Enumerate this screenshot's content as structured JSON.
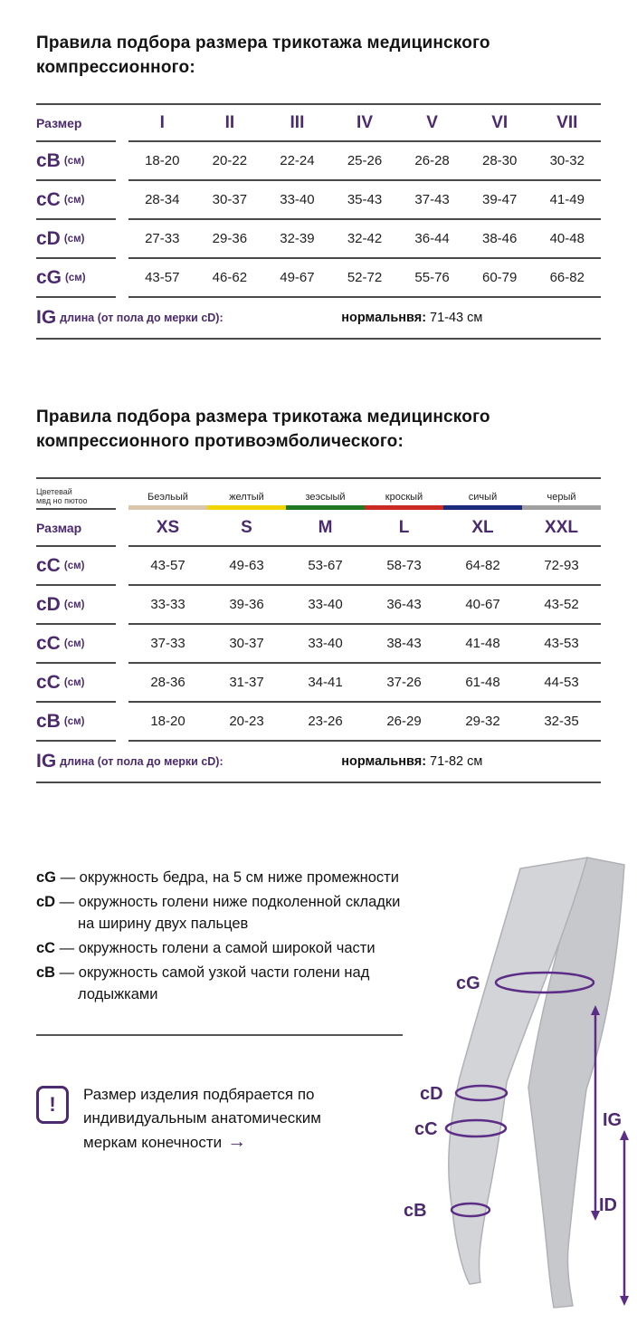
{
  "colors": {
    "accent": "#4b2a6e",
    "accent2": "#5b2d86",
    "line": "#4a4a4a",
    "text": "#161616",
    "leg_fill": "#d3d4d8",
    "leg_fill_back": "#c7c8cc",
    "leg_stroke": "#b0b1b6"
  },
  "icons": {
    "exclamation": "!",
    "arrow_right": "→"
  },
  "table1": {
    "title": "Правила подбора размера трикотажа медицинского компрессионного:",
    "header_label": "Размер",
    "columns": [
      "I",
      "II",
      "III",
      "IV",
      "V",
      "VI",
      "VII"
    ],
    "rows": [
      {
        "label": "cB",
        "unit": "(см)",
        "values": [
          "18-20",
          "20-22",
          "22-24",
          "25-26",
          "26-28",
          "28-30",
          "30-32"
        ]
      },
      {
        "label": "cC",
        "unit": "(см)",
        "values": [
          "28-34",
          "30-37",
          "33-40",
          "35-43",
          "37-43",
          "39-47",
          "41-49"
        ]
      },
      {
        "label": "cD",
        "unit": "(см)",
        "values": [
          "27-33",
          "29-36",
          "32-39",
          "32-42",
          "36-44",
          "38-46",
          "40-48"
        ]
      },
      {
        "label": "cG",
        "unit": "(см)",
        "values": [
          "43-57",
          "46-62",
          "49-67",
          "52-72",
          "55-76",
          "60-79",
          "66-82"
        ]
      }
    ],
    "footer": {
      "label": "IG",
      "text": "длина (от пола до мерки cD):",
      "bold": "нормальнвя:",
      "value": "71-43 см"
    }
  },
  "table2": {
    "title": "Правила подбора размера трикотажа медицинского компрессионного противоэмболического:",
    "color_label_line1": "Цветевай",
    "color_label_line2": "мвд но пютоо",
    "colors": [
      {
        "name": "Беэльый",
        "hex": "#d9c6ad"
      },
      {
        "name": "желтый",
        "hex": "#f2d500"
      },
      {
        "name": "зеэсыый",
        "hex": "#217a21"
      },
      {
        "name": "кроскый",
        "hex": "#c92a21"
      },
      {
        "name": "сичый",
        "hex": "#1b2a7a"
      },
      {
        "name": "черый",
        "hex": "#a0a0a0"
      }
    ],
    "header_label": "Размар",
    "columns": [
      "XS",
      "S",
      "M",
      "L",
      "XL",
      "XXL"
    ],
    "rows": [
      {
        "label": "cC",
        "unit": "(см)",
        "values": [
          "43-57",
          "49-63",
          "53-67",
          "58-73",
          "64-82",
          "72-93"
        ]
      },
      {
        "label": "cD",
        "unit": "(см)",
        "values": [
          "33-33",
          "39-36",
          "33-40",
          "36-43",
          "40-67",
          "43-52"
        ]
      },
      {
        "label": "cC",
        "unit": "(см)",
        "values": [
          "37-33",
          "30-37",
          "33-40",
          "38-43",
          "41-48",
          "43-53"
        ]
      },
      {
        "label": "cC",
        "unit": "(см)",
        "values": [
          "28-36",
          "31-37",
          "34-41",
          "37-26",
          "61-48",
          "44-53"
        ]
      },
      {
        "label": "cB",
        "unit": "(см)",
        "values": [
          "18-20",
          "20-23",
          "23-26",
          "26-29",
          "29-32",
          "32-35"
        ]
      }
    ],
    "footer": {
      "label": "IG",
      "text": "длина (от пола до мерки cD):",
      "bold": "нормальнвя:",
      "value": "71-82 см"
    }
  },
  "legend": {
    "items": [
      {
        "key": "cG",
        "text": "окружность бедра, на 5 см ниже промежности"
      },
      {
        "key": "cD",
        "text": "окружность голени ниже подколенной складки на ширину двух пальцев"
      },
      {
        "key": "cC",
        "text": "окружность голени а самой широкой части"
      },
      {
        "key": "cB",
        "text": "окружность самой узкой части голени над лодыжками"
      }
    ]
  },
  "note": {
    "text": "Размер изделия подбярается по индивидуальным анатомическим меркам конечности"
  },
  "diagram": {
    "cg": "cG",
    "cd": "cD",
    "cc": "cC",
    "cb": "cB",
    "ig": "IG",
    "id_label": "ID"
  }
}
